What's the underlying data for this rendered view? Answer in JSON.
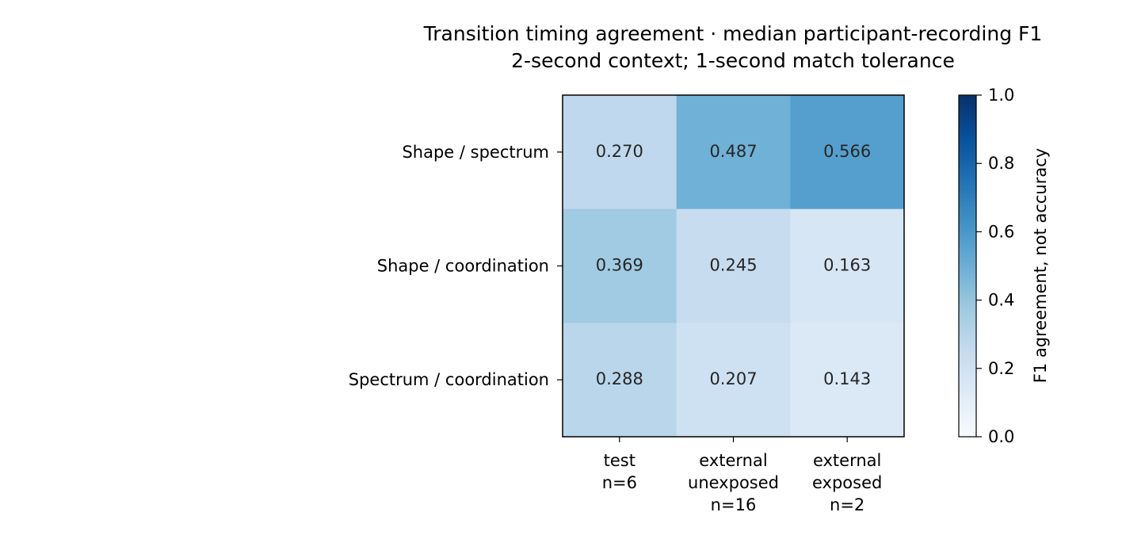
{
  "chart_data": {
    "type": "heatmap",
    "title": "Transition timing agreement · median participant-recording F1",
    "subtitle": "2-second context; 1-second match tolerance",
    "rows": [
      "Shape / spectrum",
      "Shape / coordination",
      "Spectrum / coordination"
    ],
    "columns": [
      [
        "test",
        "n=6"
      ],
      [
        "external",
        "unexposed",
        "n=16"
      ],
      [
        "external",
        "exposed",
        "n=2"
      ]
    ],
    "values": [
      [
        0.27,
        0.487,
        0.566
      ],
      [
        0.369,
        0.245,
        0.163
      ],
      [
        0.288,
        0.207,
        0.143
      ]
    ],
    "value_labels": [
      [
        "0.270",
        "0.487",
        "0.566"
      ],
      [
        "0.369",
        "0.245",
        "0.163"
      ],
      [
        "0.288",
        "0.207",
        "0.143"
      ]
    ],
    "colorbar": {
      "label": "F1 agreement, not accuracy",
      "range": [
        0,
        1
      ],
      "ticks": [
        0.0,
        0.2,
        0.4,
        0.6,
        0.8,
        1.0
      ],
      "tick_labels": [
        "0.0",
        "0.2",
        "0.4",
        "0.6",
        "0.8",
        "1.0"
      ],
      "colormap": "Blues",
      "color_low": "#f7fbff",
      "color_high": "#08306b"
    }
  }
}
